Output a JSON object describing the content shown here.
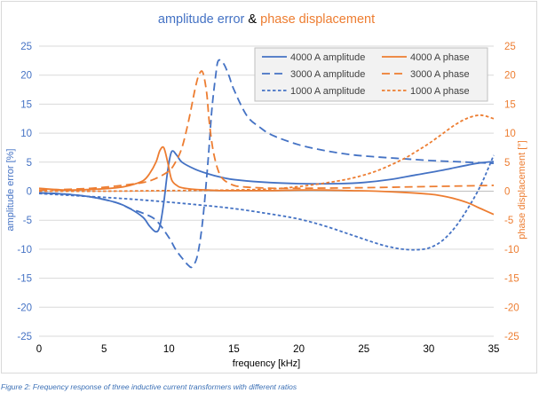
{
  "caption": "Figure 2: Frequency response of three inductive current transformers with different ratios",
  "chart_data": {
    "type": "line",
    "title": {
      "part1": "amplitude error",
      "connector": " & ",
      "part2": "phase displacement",
      "color1": "#4472c4",
      "color_connector": "#000000",
      "color2": "#ed7d31"
    },
    "xlabel": "frequency [kHz]",
    "ylabel_left": "amplitude error [%]",
    "ylabel_right": "phase displacement [°]",
    "xlim": [
      0,
      35
    ],
    "ylim_left": [
      -25,
      25
    ],
    "ylim_right": [
      -25,
      25
    ],
    "xticks": [
      0,
      5,
      10,
      15,
      20,
      25,
      30,
      35
    ],
    "yticks_left": [
      -25,
      -20,
      -15,
      -10,
      -5,
      0,
      5,
      10,
      15,
      20,
      25
    ],
    "yticks_right": [
      -25,
      -20,
      -15,
      -10,
      -5,
      0,
      5,
      10,
      15,
      20,
      25
    ],
    "grid": true,
    "legend_position": "top-right",
    "colors": {
      "amplitude": "#4472c4",
      "phase": "#ed7d31",
      "grid": "#d9d9d9"
    },
    "series": [
      {
        "name": "4000 A amplitude",
        "axis": "left",
        "color": "#4472c4",
        "dash": "solid",
        "x": [
          0,
          2,
          4,
          6,
          7,
          8,
          8.5,
          9,
          9.3,
          9.6,
          9.9,
          10.2,
          10.6,
          11,
          12,
          13,
          14,
          15,
          17,
          20,
          23,
          25,
          27,
          29,
          31,
          33,
          34,
          35
        ],
        "y": [
          -0.3,
          -0.5,
          -1.0,
          -2.0,
          -3.0,
          -4.5,
          -6.0,
          -7.0,
          -6.0,
          -2.0,
          3.5,
          6.8,
          6.2,
          5.0,
          3.8,
          3.0,
          2.4,
          2.0,
          1.6,
          1.3,
          1.3,
          1.5,
          2.0,
          2.8,
          3.6,
          4.5,
          4.9,
          5.1
        ]
      },
      {
        "name": "3000 A amplitude",
        "axis": "left",
        "color": "#4472c4",
        "dash": "long-dash",
        "x": [
          0,
          2,
          4,
          6,
          7,
          8,
          9,
          10,
          10.5,
          11,
          11.5,
          11.8,
          12.2,
          12.6,
          13,
          13.3,
          13.6,
          13.8,
          14.2,
          14.6,
          15,
          16,
          17,
          18,
          20,
          22,
          24,
          26,
          28,
          30,
          32,
          34,
          35
        ],
        "y": [
          -0.3,
          -0.5,
          -1.0,
          -2.0,
          -3.0,
          -3.8,
          -5.0,
          -8.0,
          -10.0,
          -11.5,
          -12.8,
          -13.0,
          -11.0,
          -5.0,
          5.0,
          14.0,
          20.0,
          22.5,
          22.0,
          20.0,
          17.5,
          13.0,
          11.0,
          9.6,
          8.0,
          7.0,
          6.3,
          5.9,
          5.6,
          5.3,
          5.1,
          4.9,
          4.8
        ]
      },
      {
        "name": "1000 A amplitude",
        "axis": "left",
        "color": "#4472c4",
        "dash": "short-dash",
        "x": [
          0,
          3,
          6,
          9,
          12,
          15,
          18,
          20,
          22,
          24,
          26,
          27,
          28,
          29,
          30,
          31,
          32,
          33,
          34,
          35
        ],
        "y": [
          -0.4,
          -0.8,
          -1.2,
          -1.7,
          -2.3,
          -3.0,
          -4.0,
          -4.8,
          -6.0,
          -7.5,
          -9.0,
          -9.6,
          -10.0,
          -10.1,
          -9.8,
          -8.6,
          -6.3,
          -3.0,
          1.0,
          6.2
        ]
      },
      {
        "name": "4000 A phase",
        "axis": "right",
        "color": "#ed7d31",
        "dash": "solid",
        "x": [
          0,
          2,
          4,
          6,
          7,
          8,
          8.5,
          9,
          9.3,
          9.6,
          9.9,
          10.2,
          10.6,
          11,
          12,
          13,
          14,
          16,
          18,
          20,
          22,
          24,
          26,
          28,
          30,
          31,
          32,
          33,
          34,
          35
        ],
        "y": [
          0.5,
          0.2,
          0.3,
          0.6,
          1.0,
          1.8,
          3.0,
          5.0,
          7.0,
          7.5,
          5.0,
          2.0,
          1.0,
          0.6,
          0.3,
          0.2,
          0.1,
          0.1,
          0.1,
          0.2,
          0.2,
          0.1,
          0.0,
          -0.2,
          -0.5,
          -0.8,
          -1.3,
          -2.0,
          -3.0,
          -4.0
        ]
      },
      {
        "name": "3000 A phase",
        "axis": "right",
        "color": "#ed7d31",
        "dash": "long-dash",
        "x": [
          0,
          2,
          4,
          6,
          8,
          9,
          10,
          10.5,
          11,
          11.5,
          12,
          12.3,
          12.6,
          12.9,
          13.1,
          13.4,
          13.8,
          14.2,
          15,
          16,
          18,
          20,
          25,
          30,
          35
        ],
        "y": [
          0.2,
          0.3,
          0.5,
          0.9,
          1.5,
          2.2,
          3.5,
          5.0,
          7.5,
          12.0,
          17.5,
          20.0,
          20.5,
          17.0,
          12.0,
          7.0,
          3.5,
          2.0,
          1.0,
          0.7,
          0.5,
          0.5,
          0.6,
          0.8,
          1.0
        ]
      },
      {
        "name": "1000 A phase",
        "axis": "right",
        "color": "#ed7d31",
        "dash": "short-dash",
        "x": [
          0,
          5,
          10,
          15,
          18,
          20,
          22,
          24,
          26,
          28,
          29,
          30,
          31,
          32,
          33,
          34,
          35
        ],
        "y": [
          0.0,
          0.0,
          0.1,
          0.2,
          0.4,
          0.8,
          1.4,
          2.2,
          3.5,
          5.5,
          6.8,
          8.2,
          9.8,
          11.4,
          12.6,
          13.1,
          12.5
        ]
      }
    ]
  }
}
